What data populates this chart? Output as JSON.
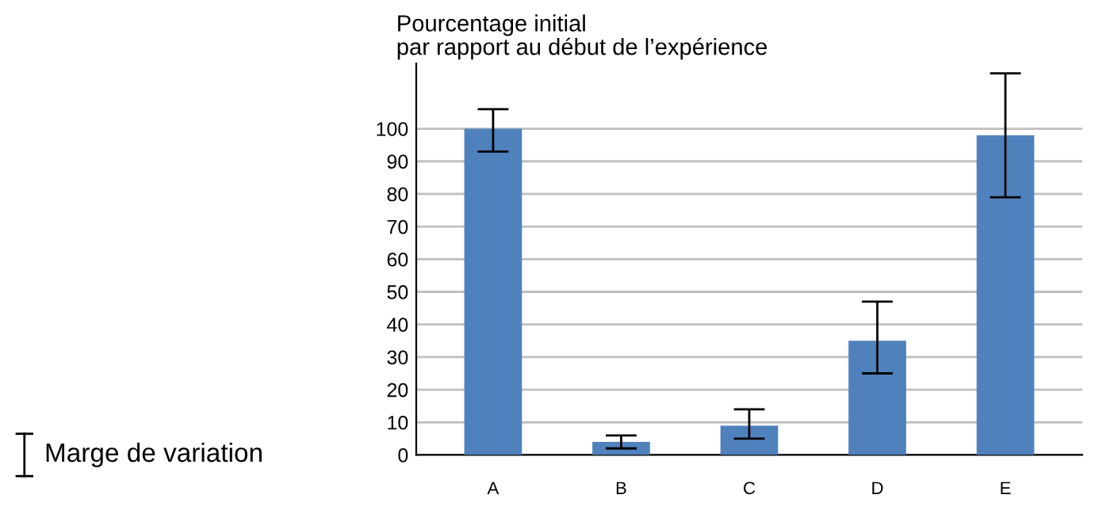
{
  "chart_data": {
    "type": "bar",
    "ylabel": "Pourcentage initial\npar rapport au début de l’expérience",
    "categories": [
      "A",
      "B",
      "C",
      "D",
      "E"
    ],
    "values": [
      100,
      4,
      9,
      35,
      98
    ],
    "errors": [
      [
        93,
        106
      ],
      [
        2,
        6
      ],
      [
        5,
        14
      ],
      [
        25,
        47
      ],
      [
        79,
        117
      ]
    ],
    "color": "#4f81bd",
    "ylim": [
      0,
      120
    ],
    "yticks": [
      0,
      10,
      20,
      30,
      40,
      50,
      60,
      70,
      80,
      90,
      100
    ],
    "grid": "y",
    "annotations": [
      "Marge de variation"
    ]
  }
}
